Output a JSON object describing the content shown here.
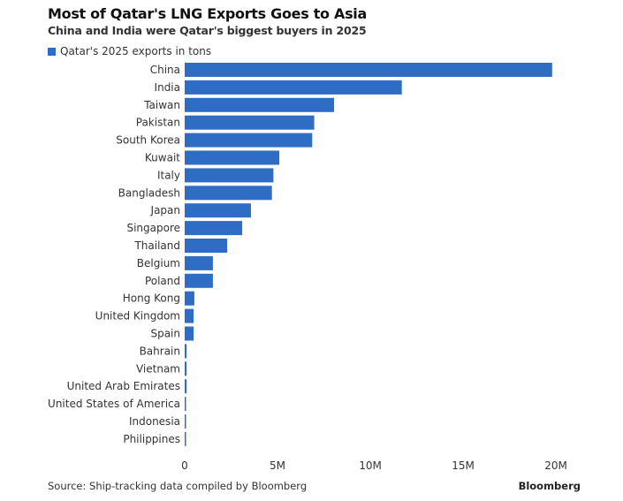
{
  "title": "Most of Qatar's LNG Exports Goes to Asia",
  "subtitle": "China and India were Qatar's biggest buyers in 2025",
  "source": "Source: Ship-tracking data compiled by Bloomberg",
  "brand": "Bloomberg",
  "chart_data": {
    "type": "bar",
    "orientation": "horizontal",
    "categories": [
      "China",
      "India",
      "Taiwan",
      "Pakistan",
      "South Korea",
      "Kuwait",
      "Italy",
      "Bangladesh",
      "Japan",
      "Singapore",
      "Thailand",
      "Belgium",
      "Poland",
      "Hong Kong",
      "United Kingdom",
      "Spain",
      "Bahrain",
      "Vietnam",
      "United Arab Emirates",
      "United States of America",
      "Indonesia",
      "Philippines"
    ],
    "series": [
      {
        "name": "Qatar's 2025 exports in tons",
        "color": "#2f6dc4",
        "values": [
          19800000.0,
          11700000.0,
          8050000.0,
          6980000.0,
          6870000.0,
          5100000.0,
          4780000.0,
          4700000.0,
          3570000.0,
          3100000.0,
          2290000.0,
          1520000.0,
          1520000.0,
          520000.0,
          480000.0,
          480000.0,
          100000.0,
          100000.0,
          100000.0,
          60000.0,
          60000.0,
          60000.0
        ]
      }
    ],
    "xlim": [
      0,
      20000000.0
    ],
    "xticks": [
      0,
      5000000.0,
      10000000.0,
      15000000.0,
      20000000.0
    ],
    "xtick_labels": [
      "0",
      "5M",
      "10M",
      "15M",
      "20M"
    ],
    "legend": "top-left",
    "grid": false
  }
}
